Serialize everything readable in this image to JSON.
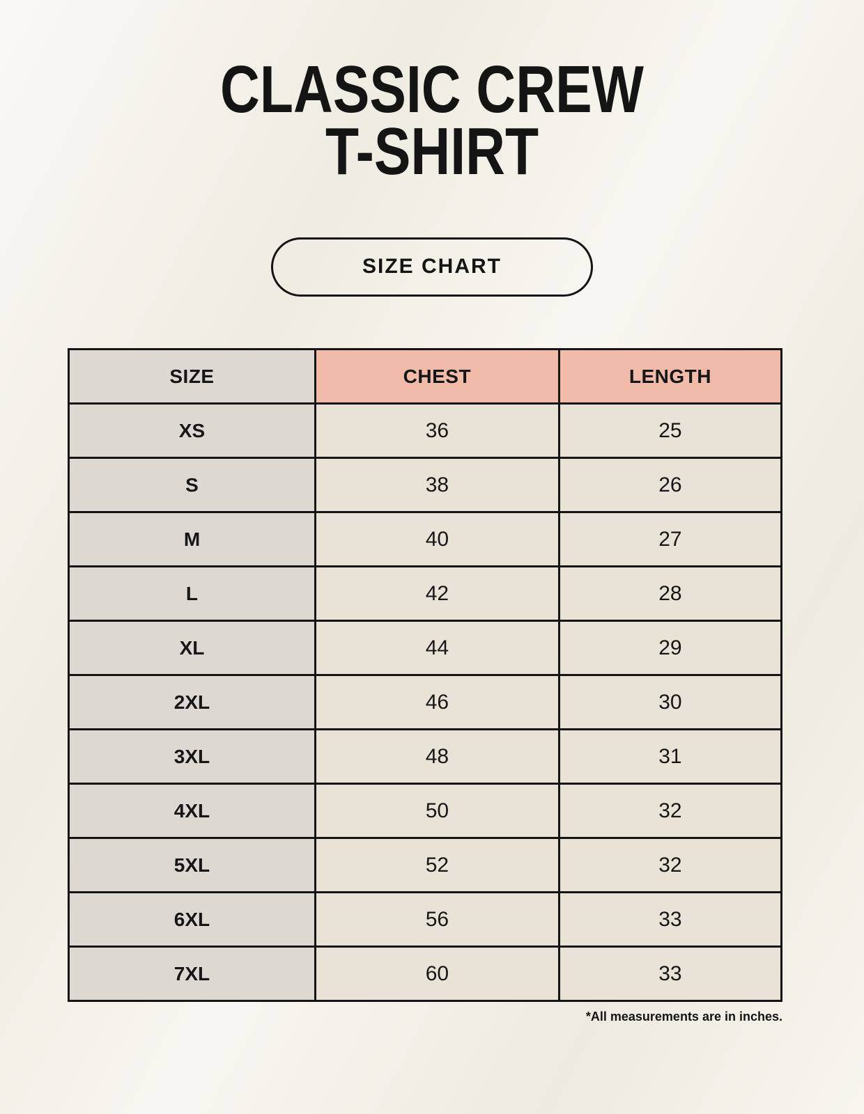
{
  "page": {
    "title_line1": "CLASSIC CREW",
    "title_line2": "T-SHIRT",
    "badge_label": "SIZE CHART",
    "footnote": "*All measurements are in inches."
  },
  "colors": {
    "background": "#f4f1e8",
    "label_column_bg": "#ded8d2",
    "measure_header_bg": "#f0bca9",
    "value_cell_bg": "#e9e3d7",
    "border": "#141414",
    "text": "#141414"
  },
  "chart_data": {
    "type": "table",
    "title": "Classic Crew T-Shirt Size Chart",
    "units": "inches",
    "columns": [
      "SIZE",
      "CHEST",
      "LENGTH"
    ],
    "rows": [
      {
        "size": "XS",
        "chest": 36,
        "length": 25
      },
      {
        "size": "S",
        "chest": 38,
        "length": 26
      },
      {
        "size": "M",
        "chest": 40,
        "length": 27
      },
      {
        "size": "L",
        "chest": 42,
        "length": 28
      },
      {
        "size": "XL",
        "chest": 44,
        "length": 29
      },
      {
        "size": "2XL",
        "chest": 46,
        "length": 30
      },
      {
        "size": "3XL",
        "chest": 48,
        "length": 31
      },
      {
        "size": "4XL",
        "chest": 50,
        "length": 32
      },
      {
        "size": "5XL",
        "chest": 52,
        "length": 32
      },
      {
        "size": "6XL",
        "chest": 56,
        "length": 33
      },
      {
        "size": "7XL",
        "chest": 60,
        "length": 33
      }
    ]
  }
}
